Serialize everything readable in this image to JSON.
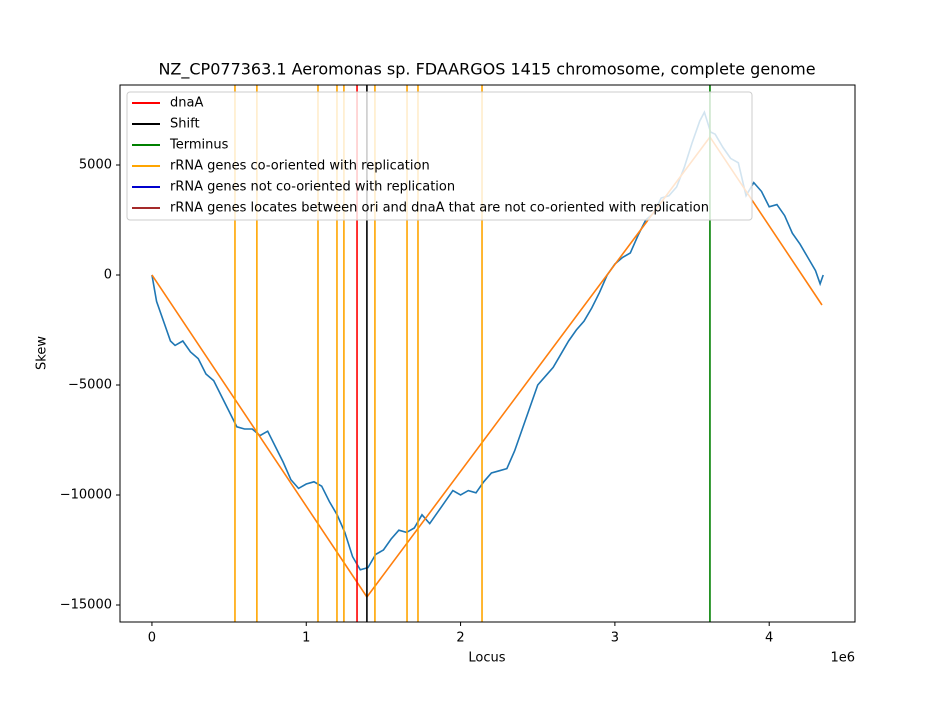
{
  "chart_data": {
    "type": "line",
    "title": "NZ_CP077363.1 Aeromonas sp. FDAARGOS 1415 chromosome, complete genome",
    "xlabel": "Locus",
    "ylabel": "Skew",
    "x_offset_label": "1e6",
    "xlim": [
      -207000,
      4556000
    ],
    "ylim": [
      -15773,
      8636
    ],
    "xticks": [
      0,
      {
        "value": 1000000,
        "label": "1"
      },
      {
        "value": 2000000,
        "label": "2"
      },
      {
        "value": 3000000,
        "label": "3"
      },
      {
        "value": 4000000,
        "label": "4"
      }
    ],
    "yticks": [
      {
        "value": -15000,
        "label": "−15000"
      },
      {
        "value": -10000,
        "label": "−10000"
      },
      {
        "value": -5000,
        "label": "−5000"
      },
      0,
      5000
    ],
    "legend": "upper left",
    "series": [
      {
        "color": "#1f77b4",
        "x": [
          0,
          30000,
          80000,
          120000,
          150000,
          200000,
          250000,
          300000,
          350000,
          400000,
          450000,
          500000,
          550000,
          600000,
          650000,
          700000,
          750000,
          800000,
          850000,
          900000,
          950000,
          1000000,
          1050000,
          1100000,
          1150000,
          1200000,
          1250000,
          1300000,
          1350000,
          1400000,
          1450000,
          1500000,
          1550000,
          1600000,
          1650000,
          1700000,
          1750000,
          1800000,
          1850000,
          1900000,
          1950000,
          2000000,
          2050000,
          2100000,
          2150000,
          2200000,
          2250000,
          2300000,
          2350000,
          2400000,
          2450000,
          2500000,
          2550000,
          2600000,
          2650000,
          2700000,
          2750000,
          2800000,
          2850000,
          2900000,
          2950000,
          3000000,
          3050000,
          3100000,
          3150000,
          3200000,
          3250000,
          3300000,
          3350000,
          3400000,
          3450000,
          3500000,
          3550000,
          3580000,
          3620000,
          3650000,
          3700000,
          3750000,
          3800000,
          3850000,
          3900000,
          3950000,
          4000000,
          4050000,
          4100000,
          4150000,
          4200000,
          4250000,
          4300000,
          4330000,
          4350000
        ],
        "values": [
          0,
          -1200,
          -2200,
          -3000,
          -3200,
          -3000,
          -3500,
          -3800,
          -4500,
          -4800,
          -5500,
          -6200,
          -6900,
          -7000,
          -7000,
          -7300,
          -7100,
          -7800,
          -8500,
          -9300,
          -9700,
          -9500,
          -9400,
          -9600,
          -10300,
          -10900,
          -11700,
          -12800,
          -13400,
          -13300,
          -12700,
          -12500,
          -12000,
          -11600,
          -11700,
          -11500,
          -10900,
          -11300,
          -10800,
          -10300,
          -9800,
          -10000,
          -9800,
          -9900,
          -9400,
          -9000,
          -8900,
          -8800,
          -8000,
          -7000,
          -6000,
          -5000,
          -4600,
          -4200,
          -3600,
          -3000,
          -2500,
          -2100,
          -1500,
          -800,
          0,
          500,
          800,
          1000,
          1800,
          2500,
          2800,
          3500,
          3600,
          4000,
          4900,
          6000,
          7000,
          7400,
          6500,
          6400,
          5800,
          5300,
          5100,
          3600,
          4200,
          3800,
          3100,
          3200,
          2700,
          1900,
          1400,
          800,
          200,
          -400,
          0
        ]
      },
      {
        "color": "#ff7f0e",
        "x": [
          0,
          1393000,
          3616000,
          4342000
        ],
        "values": [
          0,
          -14636,
          6273,
          -1364
        ]
      }
    ],
    "vlines": [
      {
        "name": "dnaA",
        "color": "#ff0000",
        "x": [
          1329000
        ]
      },
      {
        "name": "Shift",
        "color": "#000000",
        "x": [
          1393000
        ]
      },
      {
        "name": "Terminus",
        "color": "#008000",
        "x": [
          3616000
        ]
      },
      {
        "name": "rRNA genes co-oriented with replication",
        "color": "#ffa500",
        "x": [
          538000,
          680000,
          1076000,
          1199000,
          1244000,
          1445000,
          1653000,
          1724000,
          2139000
        ]
      },
      {
        "name": "rRNA genes not co-oriented with replication",
        "color": "#0000cd",
        "x": []
      },
      {
        "name": "rRNA genes locates between ori and dnaA that are not co-oriented with replication",
        "color": "#a52a2a",
        "x": []
      }
    ]
  }
}
